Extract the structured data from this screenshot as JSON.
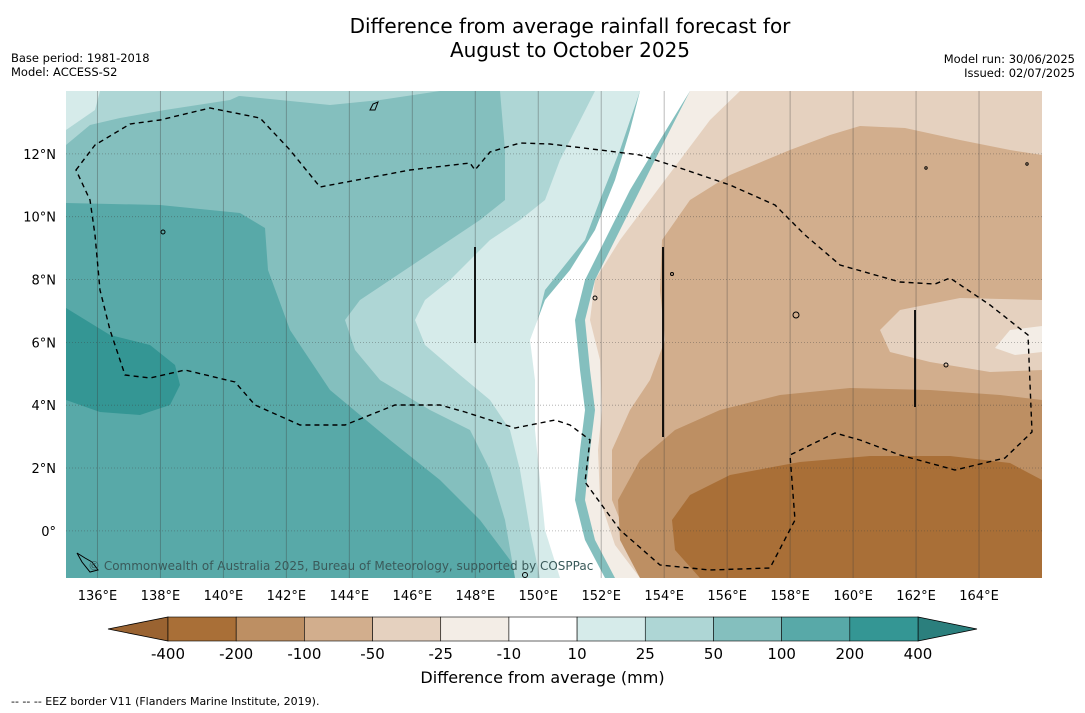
{
  "title": {
    "line1": "Difference from average rainfall forecast for",
    "line2": "August to October 2025"
  },
  "meta_left": {
    "base_period": "Base period: 1981-2018",
    "model": "Model: ACCESS-S2"
  },
  "meta_right": {
    "model_run": "Model run: 30/06/2025",
    "issued": "Issued: 02/07/2025"
  },
  "map": {
    "lon_labels": [
      "136°E",
      "138°E",
      "140°E",
      "142°E",
      "144°E",
      "146°E",
      "148°E",
      "150°E",
      "152°E",
      "154°E",
      "156°E",
      "158°E",
      "160°E",
      "162°E",
      "164°E"
    ],
    "lon_values": [
      136,
      138,
      140,
      142,
      144,
      146,
      148,
      150,
      152,
      154,
      156,
      158,
      160,
      162,
      164
    ],
    "lat_labels": [
      "12°N",
      "10°N",
      "8°N",
      "6°N",
      "4°N",
      "2°N",
      "0°"
    ],
    "lat_values": [
      12,
      10,
      8,
      6,
      4,
      2,
      0
    ],
    "lon_range": [
      135,
      166
    ],
    "lat_range": [
      -1.5,
      14
    ],
    "copyright": "© Commonwealth of Australia 2025, Bureau of Meteorology, supported by COSPPac"
  },
  "colorbar": {
    "title": "Difference from average (mm)",
    "tick_labels": [
      "-400",
      "-200",
      "-100",
      "-50",
      "-25",
      "-10",
      "10",
      "25",
      "50",
      "100",
      "200",
      "400"
    ],
    "colors": [
      "#a96f37",
      "#bd8f63",
      "#d2ae8d",
      "#e5d1bf",
      "#f3ede6",
      "#ffffff",
      "#d6ebea",
      "#aed6d5",
      "#84bfbe",
      "#58a9a8",
      "#349694"
    ],
    "under_color": "#9a6331",
    "over_color": "#2b7f7d"
  },
  "footnote": "--  --  -- EEZ border V11 (Flanders Marine Institute, 2019)."
}
